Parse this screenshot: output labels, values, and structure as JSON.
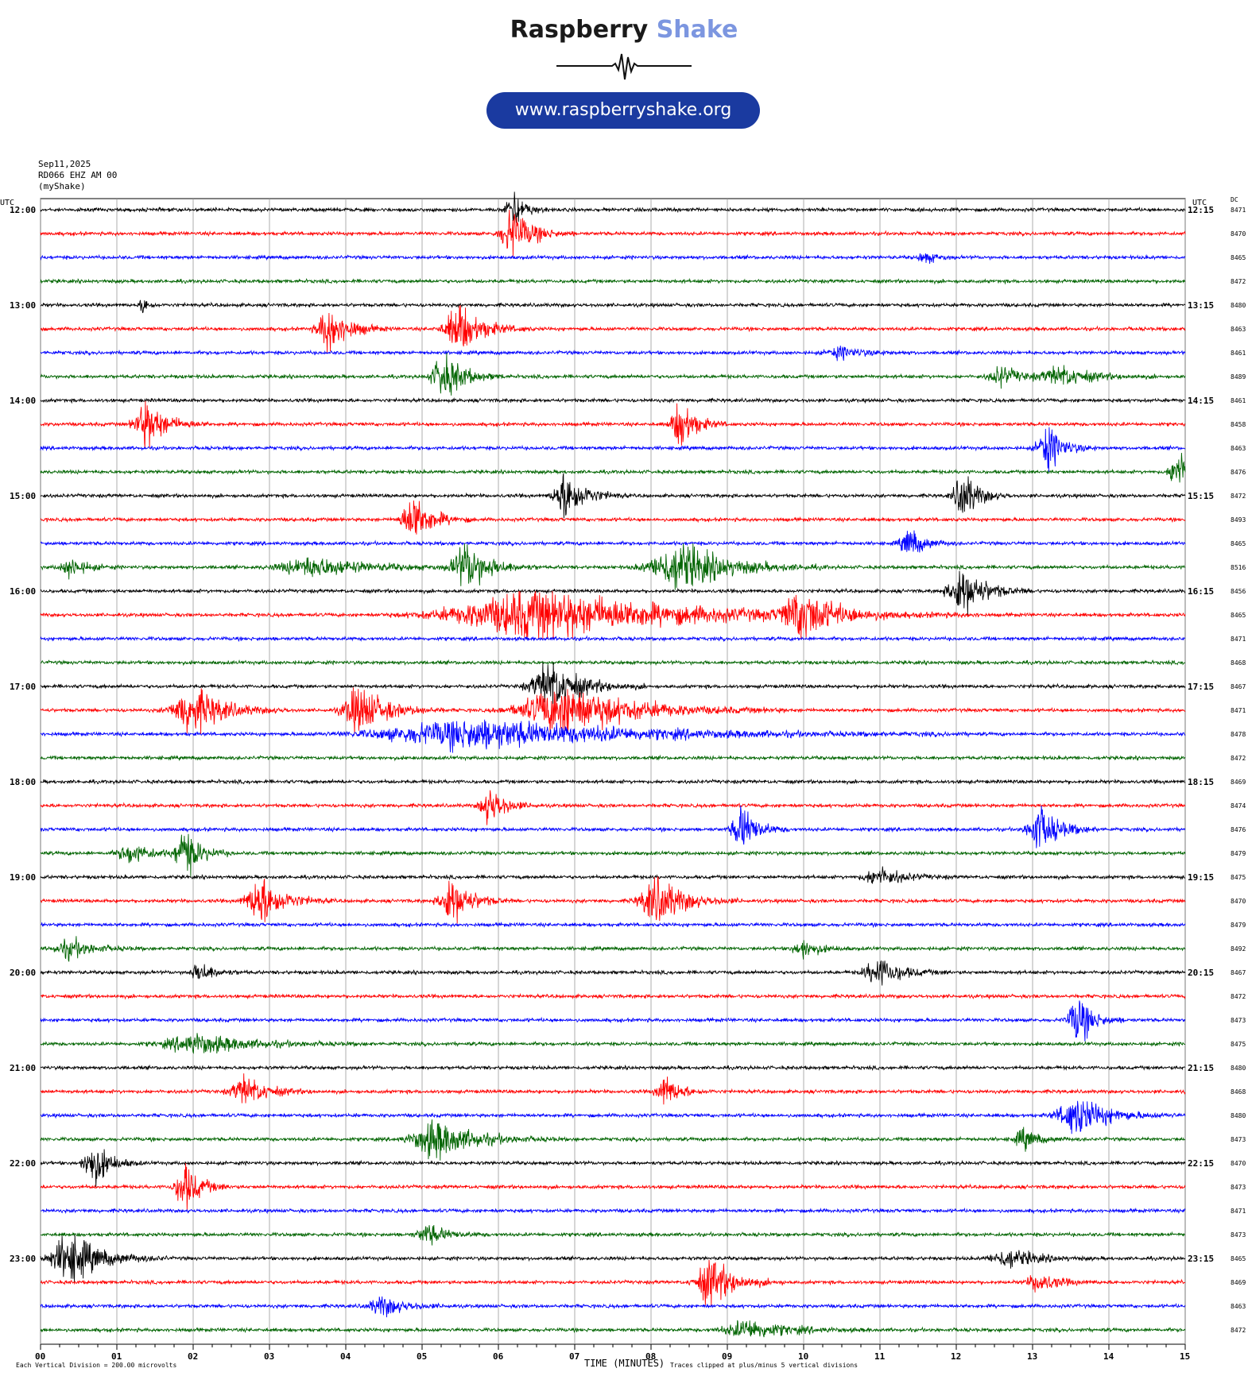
{
  "brand": {
    "name_part1": "Raspberry",
    "name_part2": "Shake",
    "url": "www.raspberryshake.org",
    "accent": "#7c96e0",
    "pill_color": "#1a3aa0"
  },
  "header": {
    "date": "Sep11,2025",
    "station": "RD066 EHZ AM 00",
    "network": "(myShake)"
  },
  "labels": {
    "utc_left": "UTC",
    "utc_right": "UTC",
    "dc": "DC",
    "xlabel": "TIME (MINUTES)",
    "scale_note": "Each Vertical Division =  200.00 microvolts",
    "clip_note": "Traces clipped at plus/minus 5 vertical divisions"
  },
  "chart_data": {
    "type": "line",
    "subtype": "helicorder",
    "xlim": [
      0,
      15
    ],
    "x_ticks": [
      "00",
      "01",
      "02",
      "03",
      "04",
      "05",
      "06",
      "07",
      "08",
      "09",
      "10",
      "11",
      "12",
      "13",
      "14",
      "15"
    ],
    "trace_minutes": 15,
    "trace_colors": [
      "#000000",
      "#ff0000",
      "#0000ff",
      "#006400"
    ],
    "left_hour_labels": [
      "12:00",
      "13:00",
      "14:00",
      "15:00",
      "16:00",
      "17:00",
      "18:00",
      "19:00",
      "20:00",
      "21:00",
      "22:00",
      "23:00"
    ],
    "right_hour_labels": [
      "12:15",
      "13:15",
      "14:15",
      "15:15",
      "16:15",
      "17:15",
      "18:15",
      "19:15",
      "20:15",
      "21:15",
      "22:15",
      "23:15"
    ],
    "dc_offsets": [
      8471,
      8470,
      8465,
      8472,
      8480,
      8463,
      8461,
      8489,
      8461,
      8458,
      8463,
      8476,
      8472,
      8493,
      8465,
      8516,
      8456,
      8465,
      8471,
      8468,
      8467,
      8471,
      8478,
      8472,
      8469,
      8474,
      8476,
      8479,
      8475,
      8470,
      8479,
      8492,
      8467,
      8472,
      8473,
      8475,
      8480,
      8468,
      8480,
      8473,
      8470,
      8473,
      8471,
      8473,
      8465,
      8469,
      8463,
      8472
    ],
    "bursts": [
      {
        "trace": 0,
        "minute": 6.2,
        "amp": 4,
        "dur": 0.3
      },
      {
        "trace": 1,
        "minute": 6.2,
        "amp": 5,
        "dur": 0.5
      },
      {
        "trace": 2,
        "minute": 11.6,
        "amp": 1.2,
        "dur": 0.3
      },
      {
        "trace": 4,
        "minute": 1.35,
        "amp": 1.8,
        "dur": 0.15
      },
      {
        "trace": 5,
        "minute": 3.8,
        "amp": 5,
        "dur": 0.5
      },
      {
        "trace": 5,
        "minute": 5.5,
        "amp": 5,
        "dur": 0.6
      },
      {
        "trace": 6,
        "minute": 10.5,
        "amp": 1.2,
        "dur": 0.6
      },
      {
        "trace": 7,
        "minute": 5.3,
        "amp": 5,
        "dur": 0.5
      },
      {
        "trace": 7,
        "minute": 12.6,
        "amp": 2,
        "dur": 0.5
      },
      {
        "trace": 7,
        "minute": 13.4,
        "amp": 2,
        "dur": 0.8
      },
      {
        "trace": 9,
        "minute": 1.4,
        "amp": 5,
        "dur": 0.5
      },
      {
        "trace": 9,
        "minute": 8.4,
        "amp": 5,
        "dur": 0.4
      },
      {
        "trace": 10,
        "minute": 13.2,
        "amp": 5,
        "dur": 0.4
      },
      {
        "trace": 11,
        "minute": 14.9,
        "amp": 5,
        "dur": 0.3
      },
      {
        "trace": 12,
        "minute": 6.9,
        "amp": 5,
        "dur": 0.5
      },
      {
        "trace": 12,
        "minute": 12.1,
        "amp": 5,
        "dur": 0.4
      },
      {
        "trace": 13,
        "minute": 4.9,
        "amp": 5,
        "dur": 0.5
      },
      {
        "trace": 14,
        "minute": 11.4,
        "amp": 3,
        "dur": 0.4
      },
      {
        "trace": 15,
        "minute": 0.4,
        "amp": 2,
        "dur": 0.4
      },
      {
        "trace": 15,
        "minute": 3.6,
        "amp": 2,
        "dur": 1.4
      },
      {
        "trace": 15,
        "minute": 5.6,
        "amp": 5,
        "dur": 0.6
      },
      {
        "trace": 15,
        "minute": 8.4,
        "amp": 5,
        "dur": 1.2
      },
      {
        "trace": 16,
        "minute": 12.1,
        "amp": 5,
        "dur": 0.6
      },
      {
        "trace": 17,
        "minute": 6.6,
        "amp": 5,
        "dur": 3.6
      },
      {
        "trace": 17,
        "minute": 10.0,
        "amp": 5,
        "dur": 0.8
      },
      {
        "trace": 20,
        "minute": 6.7,
        "amp": 5,
        "dur": 0.8
      },
      {
        "trace": 21,
        "minute": 2.0,
        "amp": 5,
        "dur": 0.8
      },
      {
        "trace": 21,
        "minute": 4.2,
        "amp": 5,
        "dur": 0.7
      },
      {
        "trace": 21,
        "minute": 6.9,
        "amp": 5,
        "dur": 1.8
      },
      {
        "trace": 22,
        "minute": 5.8,
        "amp": 3,
        "dur": 4.0
      },
      {
        "trace": 25,
        "minute": 5.9,
        "amp": 4,
        "dur": 0.4
      },
      {
        "trace": 26,
        "minute": 9.2,
        "amp": 5,
        "dur": 0.4
      },
      {
        "trace": 26,
        "minute": 13.1,
        "amp": 5,
        "dur": 0.5
      },
      {
        "trace": 27,
        "minute": 1.2,
        "amp": 2,
        "dur": 0.6
      },
      {
        "trace": 27,
        "minute": 1.9,
        "amp": 5,
        "dur": 0.4
      },
      {
        "trace": 28,
        "minute": 11.0,
        "amp": 2,
        "dur": 0.6
      },
      {
        "trace": 29,
        "minute": 2.9,
        "amp": 5,
        "dur": 0.6
      },
      {
        "trace": 29,
        "minute": 5.4,
        "amp": 5,
        "dur": 0.5
      },
      {
        "trace": 29,
        "minute": 8.1,
        "amp": 5,
        "dur": 0.7
      },
      {
        "trace": 31,
        "minute": 0.4,
        "amp": 2,
        "dur": 0.6
      },
      {
        "trace": 31,
        "minute": 10.0,
        "amp": 2,
        "dur": 0.4
      },
      {
        "trace": 32,
        "minute": 2.1,
        "amp": 2,
        "dur": 0.4
      },
      {
        "trace": 32,
        "minute": 11.0,
        "amp": 3,
        "dur": 0.6
      },
      {
        "trace": 34,
        "minute": 13.6,
        "amp": 5,
        "dur": 0.4
      },
      {
        "trace": 35,
        "minute": 2.1,
        "amp": 2,
        "dur": 1.4
      },
      {
        "trace": 37,
        "minute": 2.7,
        "amp": 3,
        "dur": 0.6
      },
      {
        "trace": 37,
        "minute": 8.2,
        "amp": 3,
        "dur": 0.4
      },
      {
        "trace": 38,
        "minute": 13.6,
        "amp": 4,
        "dur": 0.8
      },
      {
        "trace": 39,
        "minute": 5.2,
        "amp": 4,
        "dur": 1.0
      },
      {
        "trace": 39,
        "minute": 12.9,
        "amp": 2,
        "dur": 0.4
      },
      {
        "trace": 40,
        "minute": 0.7,
        "amp": 5,
        "dur": 0.4
      },
      {
        "trace": 41,
        "minute": 1.9,
        "amp": 5,
        "dur": 0.4
      },
      {
        "trace": 43,
        "minute": 5.1,
        "amp": 2,
        "dur": 0.5
      },
      {
        "trace": 44,
        "minute": 0.4,
        "amp": 5,
        "dur": 0.8
      },
      {
        "trace": 44,
        "minute": 12.7,
        "amp": 2,
        "dur": 0.7
      },
      {
        "trace": 45,
        "minute": 8.8,
        "amp": 5,
        "dur": 0.6
      },
      {
        "trace": 45,
        "minute": 13.1,
        "amp": 2,
        "dur": 0.5
      },
      {
        "trace": 46,
        "minute": 4.5,
        "amp": 2,
        "dur": 0.6
      },
      {
        "trace": 47,
        "minute": 9.3,
        "amp": 2,
        "dur": 1.0
      }
    ]
  }
}
